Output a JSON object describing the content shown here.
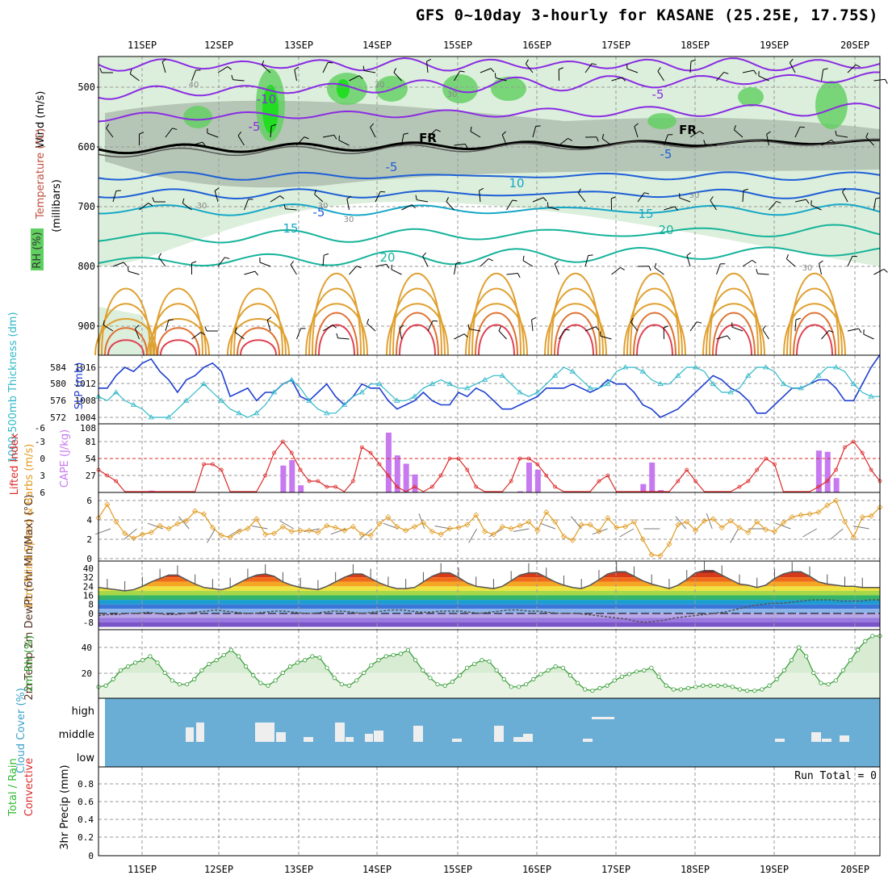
{
  "title": "GFS 0~10day 3-hourly for KASANE (25.25E, 17.75S)",
  "colors": {
    "temp_purple": "#8a2be2",
    "temp_blue": "#1e5fd6",
    "temp_cyan": "#17a7c7",
    "temp_teal": "#16b39a",
    "temp_orange": "#e0a030",
    "temp_red": "#e04050",
    "freezing": "#000000",
    "rh_light": "#dcefdc",
    "rh_mid": "#aab8aa",
    "rh_green": "#5fcf5f",
    "rh_bright": "#22dd22",
    "slp": "#1f3fd0",
    "thickness": "#2fb8c8",
    "cape": "#c779f0",
    "lifted": "#dd2a2a",
    "wind10m": "#e09a20",
    "cloud_bg": "#6aaed6",
    "cloud_bar": "#eeeeee",
    "rh2m_fill": "#d8ecd4",
    "rh2m_line": "#2f9a2f"
  },
  "chart_data": [
    {
      "type": "line",
      "name": "upper",
      "x": [
        "11SEP",
        "12SEP",
        "13SEP",
        "14SEP",
        "15SEP",
        "16SEP",
        "17SEP",
        "18SEP",
        "19SEP",
        "20SEP"
      ],
      "ylabel_parts": [
        "Wind (m/s)",
        "Temperature (°C)",
        "(millibars)",
        "RH (%)"
      ],
      "ylim": [
        1000,
        450
      ],
      "yticks": [
        "500",
        "600",
        "700",
        "800",
        "900"
      ],
      "contour_labels": [
        "-10",
        "-5",
        "-5",
        "-5",
        "FR",
        "FR",
        "-5",
        "-5",
        "10",
        "15",
        "15",
        "20",
        "20",
        "30",
        "30",
        "30",
        "30",
        "30",
        "30",
        "40",
        "30"
      ]
    },
    {
      "type": "line",
      "name": "slp_thickness",
      "ylabel_left": "1000-500mb Thickness (dm)",
      "ylabel_right": "SLP (mb)",
      "yticks_left": [
        "584",
        "580",
        "576",
        "572"
      ],
      "yticks_right": [
        "1016",
        "1012",
        "1008",
        "1004"
      ],
      "slp": [
        1011,
        1011,
        1014,
        1016,
        1015,
        1017,
        1018,
        1015,
        1013,
        1010,
        1013,
        1014,
        1016,
        1017,
        1015,
        1009,
        1010,
        1011,
        1008,
        1010,
        1010,
        1012,
        1013,
        1009,
        1008,
        1010,
        1012,
        1009,
        1007,
        1009,
        1012,
        1011,
        1011,
        1008,
        1006,
        1007,
        1008,
        1010,
        1008,
        1007,
        1007,
        1010,
        1009,
        1011,
        1010,
        1008,
        1006,
        1006,
        1007,
        1008,
        1009,
        1011,
        1011,
        1011,
        1012,
        1011,
        1010,
        1011,
        1013,
        1012,
        1012,
        1010,
        1007,
        1006,
        1004,
        1005,
        1006,
        1008,
        1010,
        1012,
        1014,
        1013,
        1011,
        1010,
        1008,
        1005,
        1005,
        1007,
        1009,
        1011,
        1011,
        1012,
        1013,
        1013,
        1011,
        1008,
        1008,
        1012,
        1016,
        1019
      ],
      "thickness": [
        577,
        576,
        578,
        576,
        575,
        574,
        572,
        572,
        572,
        574,
        576,
        578,
        580,
        578,
        576,
        574,
        573,
        572,
        573,
        575,
        578,
        580,
        581,
        579,
        576,
        574,
        573,
        573,
        575,
        577,
        578,
        580,
        580,
        578,
        576,
        576,
        577,
        579,
        580,
        581,
        580,
        579,
        579,
        580,
        581,
        582,
        582,
        580,
        578,
        577,
        578,
        580,
        582,
        584,
        583,
        581,
        579,
        579,
        580,
        583,
        584,
        584,
        583,
        581,
        580,
        580,
        582,
        584,
        584,
        583,
        580,
        578,
        578,
        579,
        582,
        584,
        584,
        583,
        580,
        579,
        579,
        580,
        582,
        584,
        584,
        583,
        580,
        578,
        577,
        577
      ]
    },
    {
      "type": "bar",
      "name": "cape_lifted",
      "ylabel_left": "Lifted Index",
      "ylabel_right": "CAPE (J/kg)",
      "yticks_left": [
        "-6",
        "-3",
        "0",
        "3",
        "6"
      ],
      "yticks_right": [
        "108",
        "81",
        "54",
        "27"
      ],
      "lifted": [
        2,
        3,
        4,
        6,
        6,
        6,
        6,
        6,
        6,
        6,
        6,
        6,
        1,
        1,
        2,
        6,
        6,
        6,
        6,
        3,
        -1,
        -3,
        -1,
        2,
        4,
        4,
        5,
        5,
        6,
        4,
        -2,
        -1,
        1,
        3,
        5,
        6,
        5,
        6,
        5,
        3,
        0,
        0,
        2,
        5,
        6,
        6,
        6,
        4,
        0,
        0,
        1,
        3,
        5,
        6,
        6,
        6,
        6,
        4,
        3,
        6,
        6,
        6,
        6,
        6,
        6,
        6,
        4,
        2,
        4,
        6,
        6,
        6,
        6,
        5,
        4,
        2,
        0,
        1,
        6,
        6,
        6,
        6,
        5,
        4,
        2,
        -2,
        -3,
        -1,
        2,
        4
      ],
      "cape": [
        0,
        0,
        0,
        0,
        0,
        0,
        3,
        0,
        0,
        0,
        0,
        0,
        0,
        0,
        0,
        0,
        0,
        0,
        0,
        0,
        0,
        45,
        54,
        12,
        0,
        0,
        0,
        0,
        0,
        0,
        0,
        0,
        0,
        100,
        62,
        48,
        30,
        0,
        0,
        0,
        0,
        0,
        0,
        0,
        0,
        0,
        0,
        0,
        2,
        50,
        38,
        0,
        0,
        0,
        0,
        0,
        0,
        0,
        0,
        0,
        0,
        0,
        14,
        50,
        4,
        0,
        0,
        0,
        0,
        0,
        0,
        0,
        0,
        0,
        0,
        0,
        0,
        0,
        0,
        0,
        0,
        0,
        70,
        68,
        24,
        0,
        0,
        0,
        0,
        0
      ]
    },
    {
      "type": "line",
      "name": "wind10m",
      "ylabel": "10m Wind Speed & Barbs (m/s)",
      "yticks": [
        "6",
        "4",
        "2",
        "0"
      ],
      "values": [
        4.2,
        5.6,
        3.8,
        2.6,
        2.1,
        2.5,
        2.7,
        3.4,
        3.1,
        3.6,
        3.9,
        4.9,
        4.6,
        3.2,
        2.4,
        2.2,
        2.8,
        3.1,
        4.1,
        2.5,
        2.6,
        3.3,
        2.8,
        2.9,
        2.9,
        2.7,
        3.4,
        3.2,
        2.9,
        3.3,
        2.5,
        2.4,
        3.6,
        4.3,
        3.3,
        2.9,
        3.3,
        3.7,
        2.8,
        2.5,
        3.1,
        3.2,
        3.5,
        4.5,
        2.8,
        2.5,
        3.3,
        3.1,
        3.4,
        3.8,
        2.9,
        4.8,
        3.8,
        2.3,
        1.9,
        3.5,
        3.5,
        2.8,
        4.2,
        3.2,
        3.3,
        3.8,
        2.0,
        0.4,
        0.3,
        1.5,
        3.5,
        3.8,
        2.9,
        3.9,
        4.1,
        3.2,
        3.9,
        3.2,
        2.7,
        3.8,
        3.0,
        2.8,
        3.7,
        4.3,
        4.5,
        4.6,
        4.8,
        5.5,
        6.0,
        3.8,
        2.2,
        4.3,
        4.4,
        5.3
      ],
      "barb_dirs": [
        160,
        140,
        200,
        230,
        120,
        150,
        190,
        210,
        170,
        160,
        140,
        200,
        250,
        190,
        120,
        150,
        170,
        200,
        230,
        160,
        150,
        180,
        230,
        250,
        120,
        180,
        200,
        150,
        140,
        190
      ]
    },
    {
      "type": "area",
      "name": "temp2m",
      "ylabel": "2m Temp 2m DewPt (6hr Min/Max) (°C)",
      "yticks": [
        "40",
        "32",
        "24",
        "16",
        "8",
        "0",
        "-8"
      ],
      "temp": [
        23,
        22,
        21,
        20,
        21,
        24,
        28,
        31,
        34,
        34,
        30,
        26,
        23,
        22,
        21,
        23,
        27,
        31,
        34,
        35,
        33,
        28,
        25,
        23,
        22,
        21,
        24,
        28,
        32,
        35,
        35,
        31,
        27,
        24,
        22,
        22,
        23,
        28,
        33,
        36,
        36,
        32,
        27,
        24,
        23,
        22,
        24,
        29,
        34,
        36,
        36,
        32,
        28,
        25,
        23,
        22,
        25,
        30,
        35,
        37,
        37,
        33,
        29,
        26,
        24,
        22,
        25,
        30,
        36,
        38,
        38,
        34,
        30,
        26,
        25,
        23,
        25,
        31,
        35,
        37,
        37,
        33,
        28,
        26,
        25,
        24,
        24,
        23,
        23,
        23
      ],
      "dewpt": [
        -2,
        -1,
        -1,
        0,
        0,
        1,
        0,
        -1,
        -1,
        0,
        1,
        2,
        3,
        2,
        1,
        0,
        0,
        1,
        2,
        2,
        1,
        0,
        0,
        1,
        2,
        2,
        1,
        0,
        1,
        2,
        3,
        3,
        2,
        1,
        1,
        2,
        2,
        2,
        1,
        0,
        1,
        2,
        3,
        3,
        2,
        2,
        1,
        0,
        0,
        0,
        -1,
        -2,
        -3,
        -4,
        -5,
        -7,
        -8,
        -7,
        -6,
        -4,
        -3,
        -2,
        -1,
        0,
        1,
        3,
        5,
        7,
        8,
        9,
        9,
        10,
        11,
        12,
        12,
        12,
        11,
        11,
        11,
        12,
        12
      ]
    },
    {
      "type": "area",
      "name": "rh2m",
      "ylabel": "2m RH (%)",
      "yticks": [
        "40",
        "20"
      ],
      "values": [
        9,
        10,
        15,
        22,
        25,
        28,
        30,
        33,
        28,
        20,
        14,
        11,
        11,
        15,
        22,
        27,
        30,
        34,
        38,
        33,
        25,
        18,
        12,
        10,
        14,
        20,
        25,
        28,
        30,
        33,
        32,
        24,
        16,
        11,
        10,
        14,
        20,
        26,
        30,
        33,
        34,
        35,
        38,
        30,
        22,
        16,
        11,
        10,
        13,
        18,
        24,
        27,
        30,
        29,
        22,
        15,
        9,
        9,
        11,
        15,
        19,
        22,
        25,
        24,
        18,
        12,
        7,
        6,
        8,
        10,
        14,
        17,
        19,
        21,
        22,
        24,
        17,
        10,
        7,
        7,
        8,
        9,
        10,
        10,
        10,
        10,
        9,
        7,
        6,
        6,
        7,
        10,
        15,
        22,
        30,
        40,
        33,
        20,
        12,
        11,
        14,
        22,
        30,
        38,
        45,
        49,
        49
      ]
    },
    {
      "type": "bar",
      "name": "cloud",
      "ylabel": "Cloud Cover (%)",
      "yticks": [
        "high",
        "middle",
        "low"
      ]
    },
    {
      "type": "bar",
      "name": "precip",
      "ylabel_left": "Total / Rain Convective",
      "ylabel_right": "3hr Precip (mm)",
      "yticks": [
        "0.8",
        "0.6",
        "0.4",
        "0.2",
        "0"
      ],
      "run_total": "Run Total = 0"
    }
  ]
}
